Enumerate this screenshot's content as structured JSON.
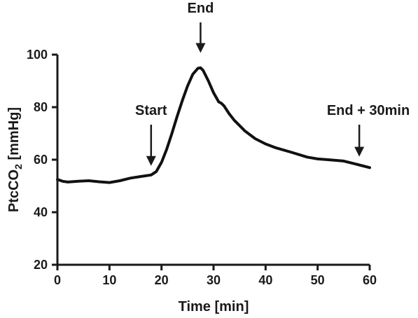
{
  "chart_data": {
    "type": "line",
    "xlabel": "Time [min]",
    "ylabel_main": "PtcCO",
    "ylabel_sub": "2",
    "ylabel_tail": " [mmHg]",
    "xlim": [
      0,
      60
    ],
    "ylim": [
      20,
      100
    ],
    "xticks": [
      0,
      10,
      20,
      30,
      40,
      50,
      60
    ],
    "yticks": [
      20,
      40,
      60,
      80,
      100
    ],
    "grid": false,
    "series": [
      {
        "x": [
          0,
          1,
          2,
          4,
          6,
          8,
          10,
          12,
          14,
          16,
          18,
          19,
          20,
          21,
          22,
          23,
          24,
          25,
          26,
          27,
          27.5,
          28,
          29,
          30,
          31,
          31.5,
          32,
          33,
          34,
          35,
          36,
          38,
          40,
          42,
          45,
          48,
          50,
          52,
          55,
          58,
          60
        ],
        "y": [
          52.5,
          51.8,
          51.5,
          51.8,
          52.0,
          51.6,
          51.3,
          52.0,
          53.0,
          53.6,
          54.2,
          55.5,
          59.0,
          64.0,
          70.0,
          76.5,
          82.5,
          88.0,
          92.5,
          94.8,
          95.0,
          94.0,
          90.0,
          85.5,
          82.0,
          81.5,
          80.5,
          77.5,
          75.0,
          73.0,
          71.0,
          68.0,
          66.0,
          64.5,
          62.8,
          61.0,
          60.3,
          60.0,
          59.5,
          58.0,
          57.0
        ]
      }
    ],
    "annotations": [
      {
        "label": "Start",
        "x": 18,
        "y_tip": 55
      },
      {
        "label": "End",
        "x": 27.5,
        "y_tip": 98
      },
      {
        "label": "End + 30min",
        "x": 58,
        "y_tip": 58.5
      }
    ]
  }
}
